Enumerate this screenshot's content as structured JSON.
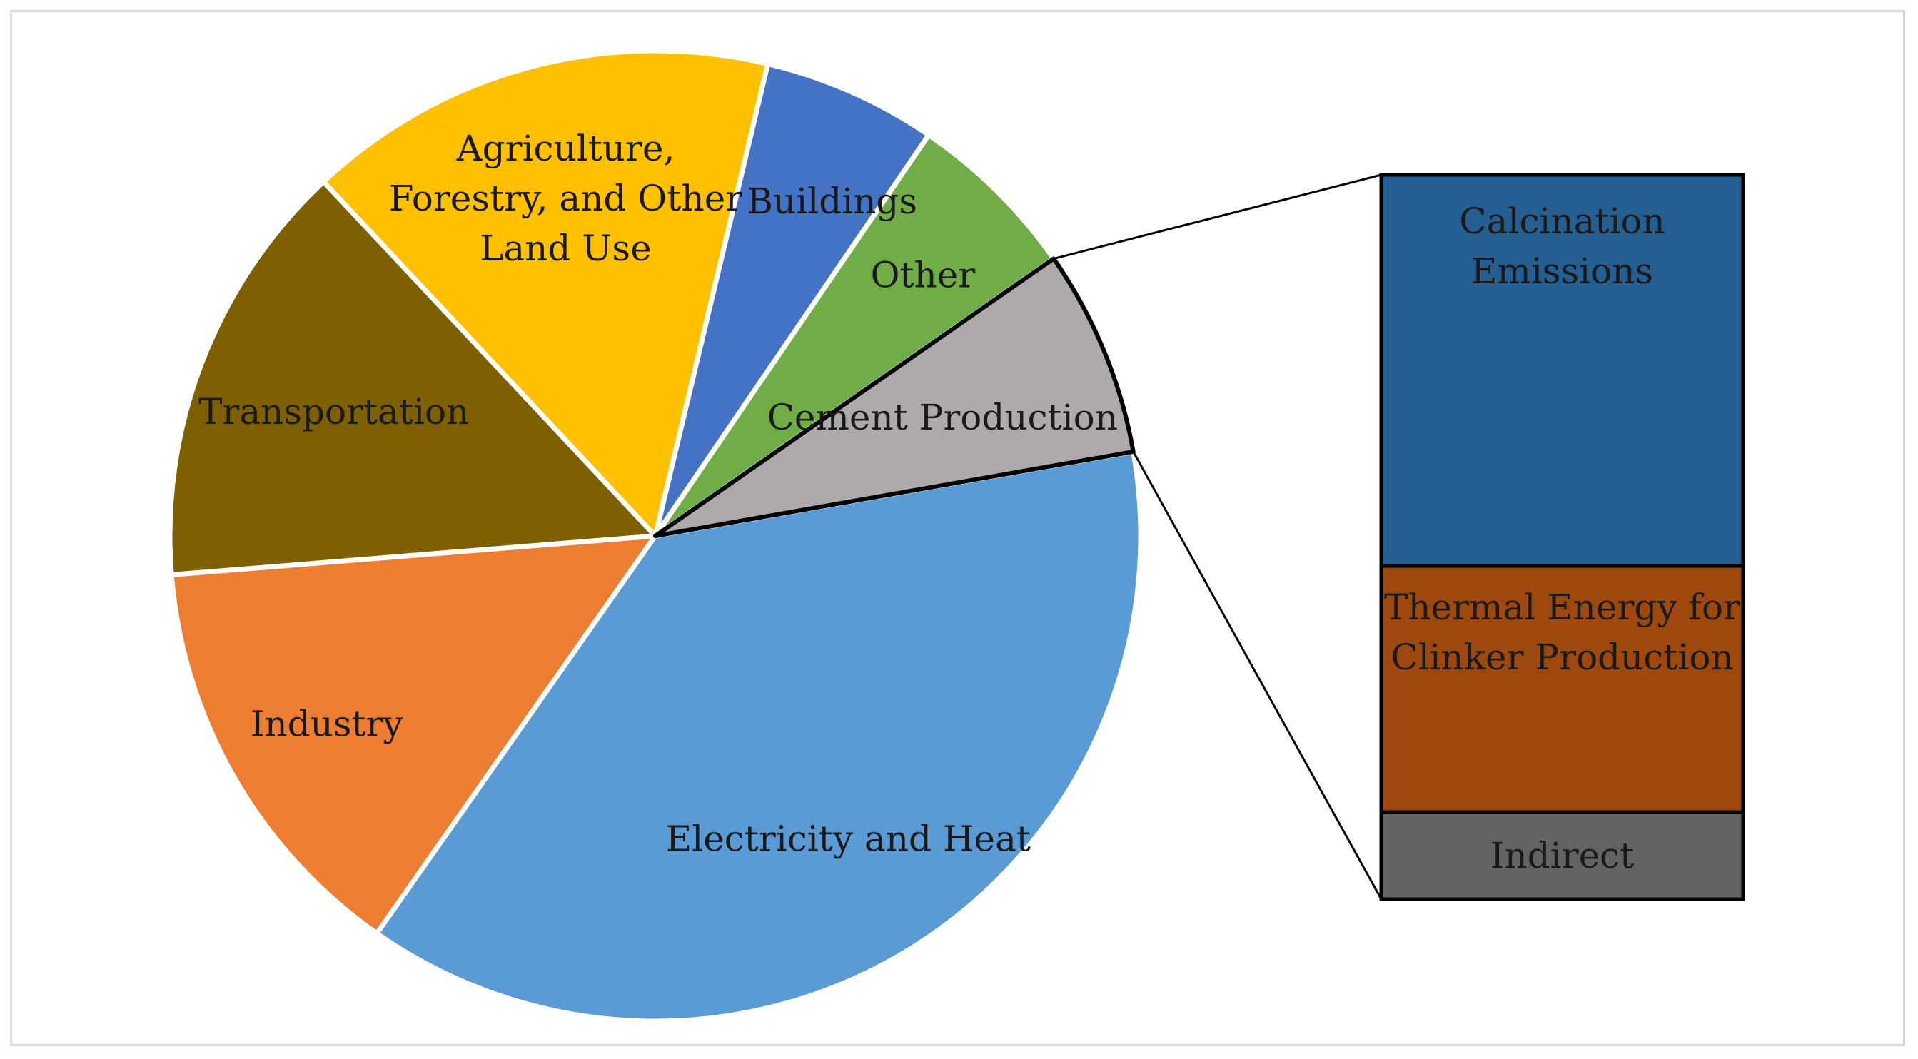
{
  "chart_data": [
    {
      "type": "pie",
      "values_unit": "percent",
      "slices": [
        {
          "label": "Electricity and Heat",
          "label_lines": [
            "Electricity and Heat"
          ],
          "value": 37.5,
          "color": "#5b9bd5",
          "label_color": "#1a1a1a"
        },
        {
          "label": "Industry",
          "label_lines": [
            "Industry"
          ],
          "value": 14.0,
          "color": "#ed7d31",
          "label_color": "#1a1a1a"
        },
        {
          "label": "Transportation",
          "label_lines": [
            "Transportation"
          ],
          "value": 14.3,
          "color": "#7f6000",
          "label_color": "#1a1a1a"
        },
        {
          "label": "Agriculture, Forestry, and Other Land Use",
          "label_lines": [
            "Agriculture,",
            "Forestry, and Other",
            "Land Use"
          ],
          "value": 15.7,
          "color": "#ffc000",
          "label_color": "#1a1a1a"
        },
        {
          "label": "Buildings",
          "label_lines": [
            "Buildings"
          ],
          "value": 5.8,
          "color": "#4472c4",
          "label_color": "#1f3864"
        },
        {
          "label": "Other",
          "label_lines": [
            "Other"
          ],
          "value": 5.8,
          "color": "#70ad47",
          "label_color": "#1a1a1a"
        },
        {
          "label": "Cement Production",
          "label_lines": [
            "Cement Production"
          ],
          "value": 6.9,
          "color": "#aeaaaa",
          "label_color": "#1a1a1a"
        }
      ]
    },
    {
      "type": "bar",
      "stacked": true,
      "breakdown_of": "Cement Production",
      "values_unit": "percent",
      "segments": [
        {
          "label": "Calcination Emissions",
          "label_lines": [
            "Calcination",
            "Emissions"
          ],
          "value": 54,
          "color": "#255e91"
        },
        {
          "label": "Thermal Energy for Clinker Production",
          "label_lines": [
            "Thermal Energy for",
            "Clinker Production"
          ],
          "value": 34,
          "color": "#9e480e"
        },
        {
          "label": "Indirect",
          "label_lines": [
            "Indirect"
          ],
          "value": 12,
          "color": "#636363"
        }
      ]
    }
  ]
}
